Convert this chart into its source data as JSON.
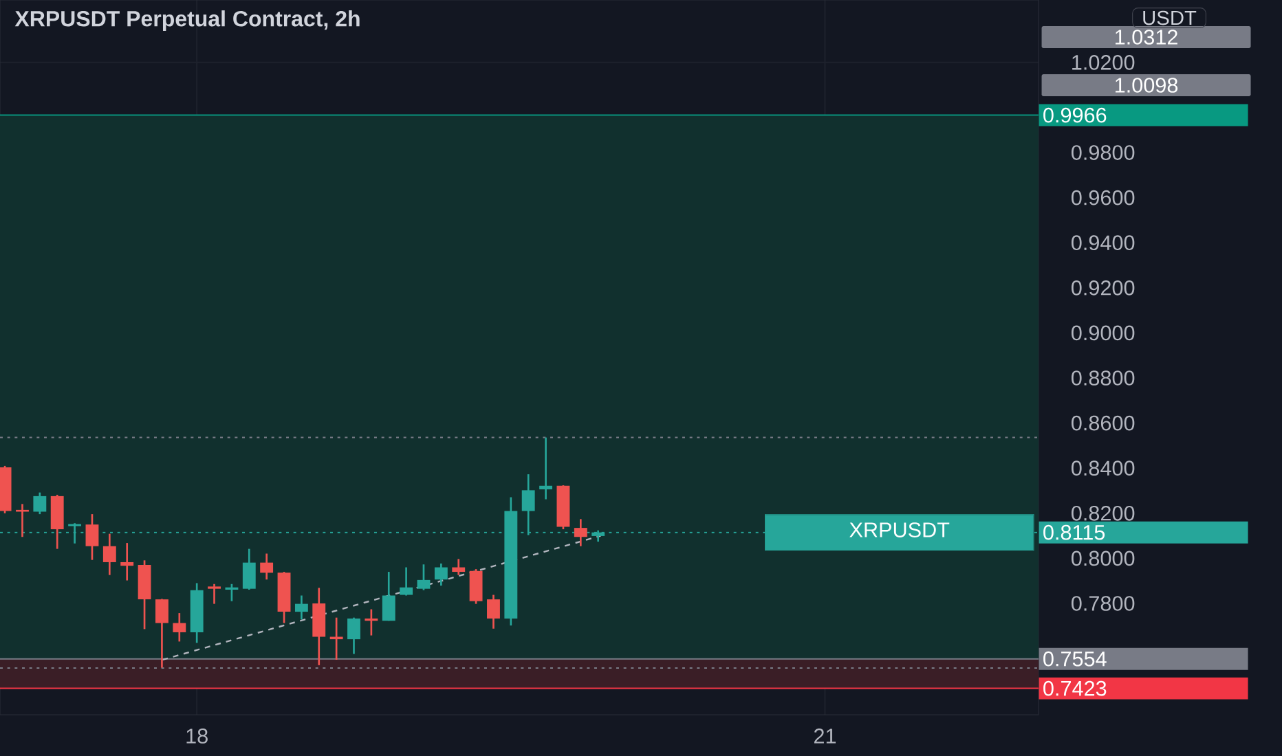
{
  "chart_data": {
    "type": "candlestick",
    "title": "XRPUSDT Perpetual Contract, 2h",
    "ylabel": "USDT",
    "xlim": [
      17.06,
      22.02
    ],
    "ylim": [
      0.7306,
      1.0477
    ],
    "xticks": [
      18,
      21
    ],
    "yticks": [
      {
        "value": 0.78,
        "label": "0.7800"
      },
      {
        "value": 0.8,
        "label": "0.8000"
      },
      {
        "value": 0.82,
        "label": "0.8200"
      },
      {
        "value": 0.84,
        "label": "0.8400"
      },
      {
        "value": 0.86,
        "label": "0.8600"
      },
      {
        "value": 0.88,
        "label": "0.8800"
      },
      {
        "value": 0.9,
        "label": "0.9000"
      },
      {
        "value": 0.92,
        "label": "0.9200"
      },
      {
        "value": 0.94,
        "label": "0.9400"
      },
      {
        "value": 0.96,
        "label": "0.9600"
      },
      {
        "value": 0.98,
        "label": "0.9800"
      },
      {
        "value": 1.02,
        "label": "1.0200"
      }
    ],
    "grid": true,
    "series": [
      {
        "name": "XRPUSDT",
        "x": [
          17.0833,
          17.1667,
          17.25,
          17.3333,
          17.4167,
          17.5,
          17.5833,
          17.6667,
          17.75,
          17.8333,
          17.9167,
          18.0,
          18.0833,
          18.1667,
          18.25,
          18.3333,
          18.4167,
          18.5,
          18.5833,
          18.6667,
          18.75,
          18.8333,
          18.9167,
          19.0,
          19.0833,
          19.1667,
          19.25,
          19.3333,
          19.4167,
          19.5,
          19.5833,
          19.6667,
          19.75,
          19.8333,
          19.9167
        ],
        "ohlc": [
          [
            0.8404,
            0.841,
            0.82,
            0.821
          ],
          [
            0.8215,
            0.8241,
            0.8095,
            0.8207
          ],
          [
            0.8207,
            0.8292,
            0.8196,
            0.8276
          ],
          [
            0.8276,
            0.8282,
            0.8042,
            0.8129
          ],
          [
            0.8143,
            0.8156,
            0.8066,
            0.8152
          ],
          [
            0.815,
            0.8196,
            0.7993,
            0.8054
          ],
          [
            0.8054,
            0.8109,
            0.7926,
            0.7983
          ],
          [
            0.7983,
            0.8068,
            0.7902,
            0.7967
          ],
          [
            0.7971,
            0.7991,
            0.7686,
            0.7818
          ],
          [
            0.7818,
            0.782,
            0.7515,
            0.7713
          ],
          [
            0.7713,
            0.7757,
            0.7631,
            0.7672
          ],
          [
            0.7672,
            0.789,
            0.7625,
            0.7859
          ],
          [
            0.7875,
            0.7886,
            0.7798,
            0.7865
          ],
          [
            0.7861,
            0.7886,
            0.781,
            0.7871
          ],
          [
            0.7865,
            0.8042,
            0.7861,
            0.7981
          ],
          [
            0.7981,
            0.8021,
            0.7906,
            0.7936
          ],
          [
            0.7936,
            0.794,
            0.7713,
            0.7763
          ],
          [
            0.7763,
            0.7835,
            0.7729,
            0.7798
          ],
          [
            0.78,
            0.7869,
            0.7526,
            0.7652
          ],
          [
            0.7652,
            0.7737,
            0.755,
            0.7641
          ],
          [
            0.7641,
            0.7737,
            0.7576,
            0.7733
          ],
          [
            0.7733,
            0.7774,
            0.7658,
            0.7723
          ],
          [
            0.7723,
            0.794,
            0.7723,
            0.7835
          ],
          [
            0.7838,
            0.796,
            0.7835,
            0.7871
          ],
          [
            0.7865,
            0.7973,
            0.7859,
            0.7904
          ],
          [
            0.7906,
            0.7977,
            0.7879,
            0.796
          ],
          [
            0.796,
            0.7997,
            0.7926,
            0.794
          ],
          [
            0.7944,
            0.7952,
            0.7798,
            0.781
          ],
          [
            0.7818,
            0.7838,
            0.7688,
            0.7733
          ],
          [
            0.7733,
            0.8271,
            0.7702,
            0.821
          ],
          [
            0.821,
            0.8373,
            0.8103,
            0.8302
          ],
          [
            0.8306,
            0.8536,
            0.8262,
            0.8322
          ],
          [
            0.8322,
            0.8324,
            0.8129,
            0.814
          ],
          [
            0.8135,
            0.8174,
            0.8054,
            0.8095
          ],
          [
            0.8099,
            0.8124,
            0.8074,
            0.8115
          ]
        ]
      },
      {
        "type": "line",
        "color": "#b2b5be",
        "line_style": "dashed",
        "x": [
          17.836,
          19.929
        ],
        "values": [
          0.755,
          0.81
        ]
      }
    ],
    "bands": [
      {
        "axis": "y",
        "from": 0.7554,
        "to": 0.9966,
        "color": "#11302e"
      },
      {
        "axis": "y",
        "from": 0.7423,
        "to": 0.7554,
        "color": "#3a1e26"
      }
    ],
    "annotations": [
      "1.0312",
      "1.0098"
    ],
    "ref_lines": [
      {
        "axis": "y",
        "value": 0.9966,
        "label": "0.9966",
        "color": "#089981",
        "line_style": "solid"
      },
      {
        "axis": "y",
        "value": 0.8536,
        "color": "#787b86",
        "line_style": "dotted"
      },
      {
        "axis": "y",
        "value": 0.8115,
        "label": "0.8115",
        "color": "#26a69a",
        "line_style": "dotted"
      },
      {
        "axis": "y",
        "value": 0.7554,
        "label": "0.7554",
        "color": "#787b86",
        "line_style": "solid"
      },
      {
        "axis": "y",
        "value": 0.7513,
        "color": "#787b86",
        "line_style": "dotted"
      },
      {
        "axis": "y",
        "value": 0.7423,
        "label": "0.7423",
        "color": "#f23645",
        "line_style": "solid"
      }
    ]
  }
}
